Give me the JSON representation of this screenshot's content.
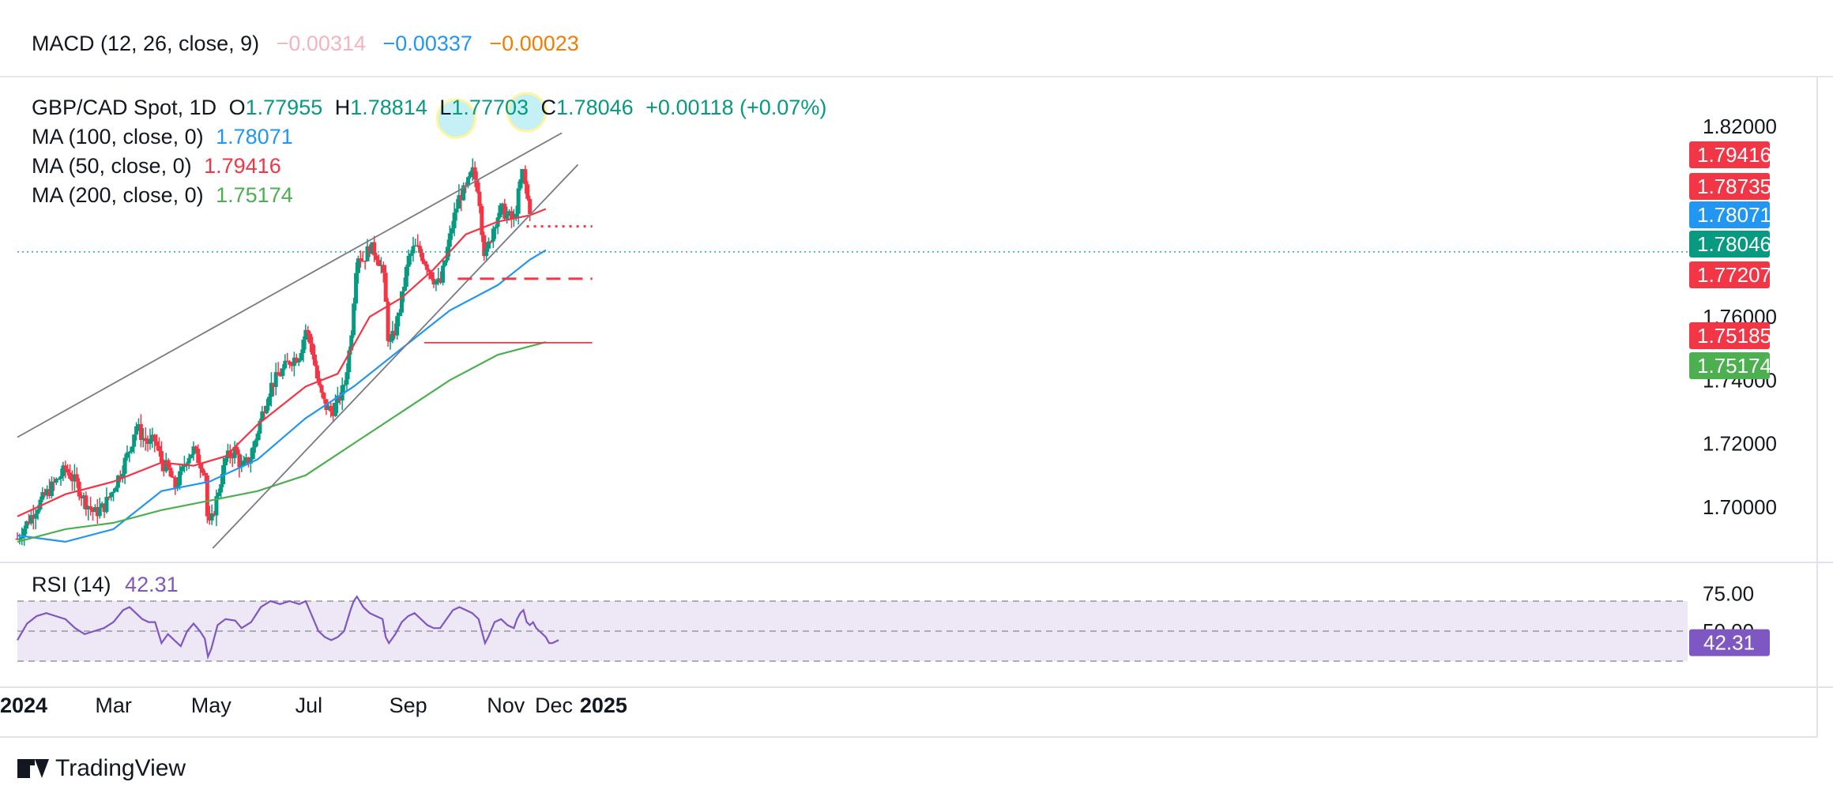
{
  "macd": {
    "label": "MACD (12, 26, close, 9)",
    "v1": "−0.00314",
    "v2": "−0.00337",
    "v3": "−0.00023",
    "c1": "#f4b4bf",
    "c2": "#2196f3",
    "c3": "#f57c00"
  },
  "legend": {
    "symbol": "GBP/CAD Spot, 1D",
    "o_label": "O",
    "o_val": "1.77955",
    "h_label": "H",
    "h_val": "1.78814",
    "l_label": "L",
    "l_val": "1.77703",
    "c_label": "C",
    "c_val": "1.78046",
    "change": "+0.00118 (+0.07%)",
    "ma100_label": "MA (100, close, 0)",
    "ma100_val": "1.78071",
    "ma50_label": "MA (50, close, 0)",
    "ma50_val": "1.79416",
    "ma200_label": "MA (200, close, 0)",
    "ma200_val": "1.75174"
  },
  "rsi": {
    "label": "RSI (14)",
    "value": "42.31"
  },
  "footer": {
    "brand": "TradingView"
  },
  "chart_data": {
    "type": "line",
    "price_axis": {
      "ylim": [
        1.685,
        1.835
      ],
      "ticks": [
        "1.82000",
        "1.76000",
        "1.72000",
        "1.70000"
      ],
      "tick_values": [
        1.82,
        1.76,
        1.72,
        1.7
      ],
      "partially_hidden_ticks": [
        "1.74000"
      ],
      "partially_hidden_tick_values": [
        1.74
      ]
    },
    "time_axis": {
      "labels": [
        "2024",
        "Mar",
        "May",
        "Jul",
        "Sep",
        "Nov",
        "Dec",
        "2025"
      ],
      "bold": [
        true,
        false,
        false,
        false,
        false,
        false,
        false,
        true
      ],
      "positions": [
        0,
        60,
        121,
        182,
        244,
        305,
        335,
        366
      ]
    },
    "last_bar_day": 320,
    "price_tags": [
      {
        "text": "1.79416",
        "value": 1.79416,
        "color": "#f23645"
      },
      {
        "text": "1.78735",
        "value": 1.78735,
        "color": "#f23645"
      },
      {
        "text": "1.78071",
        "value": 1.78071,
        "color": "#2196f3"
      },
      {
        "text": "1.78046",
        "value": 1.78046,
        "color": "#089981"
      },
      {
        "text": "1.77207",
        "value": 1.77207,
        "color": "#f23645"
      },
      {
        "text": "1.75185",
        "value": 1.75185,
        "color": "#f23645"
      },
      {
        "text": "1.75174",
        "value": 1.75174,
        "color": "#4caf50"
      }
    ],
    "close_series": [
      [
        0,
        1.69
      ],
      [
        6,
        1.695
      ],
      [
        12,
        1.7
      ],
      [
        18,
        1.704
      ],
      [
        24,
        1.708
      ],
      [
        30,
        1.712
      ],
      [
        36,
        1.708
      ],
      [
        42,
        1.702
      ],
      [
        48,
        1.698
      ],
      [
        54,
        1.7
      ],
      [
        60,
        1.706
      ],
      [
        66,
        1.713
      ],
      [
        70,
        1.718
      ],
      [
        74,
        1.726
      ],
      [
        78,
        1.722
      ],
      [
        82,
        1.72
      ],
      [
        86,
        1.721
      ],
      [
        90,
        1.714
      ],
      [
        94,
        1.712
      ],
      [
        98,
        1.706
      ],
      [
        102,
        1.71
      ],
      [
        106,
        1.716
      ],
      [
        110,
        1.718
      ],
      [
        114,
        1.714
      ],
      [
        117,
        1.712
      ],
      [
        119,
        1.693
      ],
      [
        121,
        1.695
      ],
      [
        125,
        1.704
      ],
      [
        130,
        1.715
      ],
      [
        136,
        1.718
      ],
      [
        140,
        1.712
      ],
      [
        146,
        1.716
      ],
      [
        152,
        1.728
      ],
      [
        158,
        1.738
      ],
      [
        164,
        1.742
      ],
      [
        170,
        1.746
      ],
      [
        176,
        1.748
      ],
      [
        180,
        1.756
      ],
      [
        184,
        1.75
      ],
      [
        188,
        1.738
      ],
      [
        192,
        1.732
      ],
      [
        196,
        1.73
      ],
      [
        200,
        1.733
      ],
      [
        204,
        1.738
      ],
      [
        208,
        1.752
      ],
      [
        210,
        1.766
      ],
      [
        212,
        1.78
      ],
      [
        216,
        1.778
      ],
      [
        220,
        1.782
      ],
      [
        224,
        1.78
      ],
      [
        228,
        1.775
      ],
      [
        230,
        1.764
      ],
      [
        232,
        1.75
      ],
      [
        236,
        1.756
      ],
      [
        240,
        1.766
      ],
      [
        244,
        1.778
      ],
      [
        248,
        1.782
      ],
      [
        252,
        1.78
      ],
      [
        256,
        1.776
      ],
      [
        260,
        1.772
      ],
      [
        264,
        1.77
      ],
      [
        268,
        1.78
      ],
      [
        272,
        1.79
      ],
      [
        276,
        1.798
      ],
      [
        280,
        1.8
      ],
      [
        284,
        1.806
      ],
      [
        288,
        1.8
      ],
      [
        290,
        1.788
      ],
      [
        292,
        1.778
      ],
      [
        294,
        1.782
      ],
      [
        298,
        1.79
      ],
      [
        302,
        1.794
      ],
      [
        306,
        1.792
      ],
      [
        310,
        1.79
      ],
      [
        312,
        1.796
      ],
      [
        314,
        1.802
      ],
      [
        316,
        1.806
      ],
      [
        318,
        1.798
      ],
      [
        320,
        1.794
      ],
      [
        322,
        1.796
      ],
      [
        324,
        1.791
      ],
      [
        326,
        1.79
      ],
      [
        328,
        1.786
      ],
      [
        330,
        1.788
      ],
      [
        332,
        1.772
      ],
      [
        334,
        1.774
      ],
      [
        336,
        1.776
      ],
      [
        338,
        1.78
      ]
    ],
    "candle_count": 225,
    "series": [
      {
        "name": "MA (100, close, 0)",
        "color": "#2196f3",
        "values": [
          [
            0,
            1.691
          ],
          [
            30,
            1.689
          ],
          [
            60,
            1.693
          ],
          [
            90,
            1.705
          ],
          [
            120,
            1.708
          ],
          [
            150,
            1.715
          ],
          [
            180,
            1.728
          ],
          [
            210,
            1.738
          ],
          [
            240,
            1.75
          ],
          [
            270,
            1.762
          ],
          [
            300,
            1.77
          ],
          [
            320,
            1.778
          ],
          [
            330,
            1.781
          ]
        ]
      },
      {
        "name": "MA (50, close, 0)",
        "color": "#f23645",
        "values": [
          [
            0,
            1.697
          ],
          [
            30,
            1.704
          ],
          [
            60,
            1.708
          ],
          [
            90,
            1.714
          ],
          [
            110,
            1.713
          ],
          [
            130,
            1.716
          ],
          [
            150,
            1.726
          ],
          [
            180,
            1.738
          ],
          [
            200,
            1.742
          ],
          [
            220,
            1.76
          ],
          [
            240,
            1.766
          ],
          [
            260,
            1.775
          ],
          [
            280,
            1.786
          ],
          [
            300,
            1.79
          ],
          [
            320,
            1.792
          ],
          [
            330,
            1.794
          ]
        ]
      },
      {
        "name": "MA (200, close, 0)",
        "color": "#4caf50",
        "values": [
          [
            0,
            1.689
          ],
          [
            30,
            1.693
          ],
          [
            60,
            1.695
          ],
          [
            90,
            1.699
          ],
          [
            120,
            1.702
          ],
          [
            150,
            1.705
          ],
          [
            180,
            1.71
          ],
          [
            210,
            1.72
          ],
          [
            240,
            1.73
          ],
          [
            270,
            1.74
          ],
          [
            300,
            1.748
          ],
          [
            330,
            1.752
          ]
        ]
      }
    ],
    "trend_lines": [
      {
        "from": [
          0,
          1.722
        ],
        "to": [
          340,
          1.818
        ],
        "color": "#787b86"
      },
      {
        "from": [
          122,
          1.687
        ],
        "to": [
          350,
          1.808
        ],
        "color": "#787b86"
      }
    ],
    "horizontal_levels": [
      {
        "value": 1.7885,
        "from": 318,
        "to": 359,
        "style": "dotted",
        "color": "#f23645"
      },
      {
        "value": 1.772,
        "from": 275,
        "to": 359,
        "style": "dashed",
        "color": "#f23645"
      },
      {
        "value": 1.7518,
        "from": 254,
        "to": 359,
        "style": "solid",
        "color": "#f23645"
      }
    ],
    "highlights": [
      {
        "x": 274,
        "y": 1.8225,
        "color": "#b2ebf2"
      },
      {
        "x": 318,
        "y": 1.8245,
        "color": "#b2ebf2"
      }
    ],
    "rsi": {
      "ylim": [
        20,
        80
      ],
      "levels": [
        70,
        50,
        30
      ],
      "ticks": [
        "75.00",
        "50.00"
      ],
      "tick_values": [
        75,
        50
      ],
      "values": [
        [
          0,
          44
        ],
        [
          6,
          55
        ],
        [
          12,
          60
        ],
        [
          18,
          62
        ],
        [
          24,
          60
        ],
        [
          30,
          58
        ],
        [
          36,
          52
        ],
        [
          42,
          48
        ],
        [
          48,
          50
        ],
        [
          54,
          52
        ],
        [
          60,
          56
        ],
        [
          66,
          64
        ],
        [
          70,
          66
        ],
        [
          74,
          62
        ],
        [
          78,
          58
        ],
        [
          82,
          56
        ],
        [
          86,
          56
        ],
        [
          90,
          42
        ],
        [
          94,
          48
        ],
        [
          98,
          44
        ],
        [
          102,
          40
        ],
        [
          106,
          50
        ],
        [
          110,
          55
        ],
        [
          114,
          50
        ],
        [
          117,
          45
        ],
        [
          119,
          33
        ],
        [
          121,
          38
        ],
        [
          125,
          54
        ],
        [
          130,
          58
        ],
        [
          136,
          57
        ],
        [
          140,
          52
        ],
        [
          146,
          56
        ],
        [
          152,
          66
        ],
        [
          158,
          70
        ],
        [
          164,
          68
        ],
        [
          170,
          70
        ],
        [
          176,
          68
        ],
        [
          180,
          70
        ],
        [
          184,
          60
        ],
        [
          188,
          50
        ],
        [
          192,
          46
        ],
        [
          196,
          44
        ],
        [
          200,
          46
        ],
        [
          204,
          50
        ],
        [
          208,
          64
        ],
        [
          210,
          70
        ],
        [
          212,
          73
        ],
        [
          216,
          66
        ],
        [
          220,
          62
        ],
        [
          224,
          60
        ],
        [
          228,
          58
        ],
        [
          230,
          46
        ],
        [
          232,
          42
        ],
        [
          236,
          48
        ],
        [
          240,
          56
        ],
        [
          244,
          60
        ],
        [
          248,
          62
        ],
        [
          252,
          58
        ],
        [
          256,
          54
        ],
        [
          260,
          52
        ],
        [
          264,
          52
        ],
        [
          268,
          58
        ],
        [
          272,
          64
        ],
        [
          276,
          66
        ],
        [
          280,
          64
        ],
        [
          284,
          62
        ],
        [
          288,
          58
        ],
        [
          290,
          50
        ],
        [
          292,
          42
        ],
        [
          294,
          46
        ],
        [
          298,
          56
        ],
        [
          302,
          58
        ],
        [
          306,
          54
        ],
        [
          310,
          52
        ],
        [
          312,
          58
        ],
        [
          314,
          62
        ],
        [
          316,
          64
        ],
        [
          318,
          56
        ],
        [
          320,
          54
        ],
        [
          322,
          56
        ],
        [
          324,
          52
        ],
        [
          326,
          50
        ],
        [
          328,
          48
        ],
        [
          330,
          46
        ],
        [
          332,
          42
        ],
        [
          334,
          42
        ],
        [
          336,
          43
        ],
        [
          338,
          44
        ]
      ],
      "color": "#7e57c2",
      "band_color": "#ede7f6"
    }
  }
}
